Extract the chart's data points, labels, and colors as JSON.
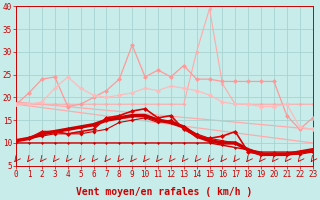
{
  "background_color": "#c8ecea",
  "grid_color": "#a8d4d0",
  "xlabel": "Vent moyen/en rafales ( km/h )",
  "xlabel_color": "#cc0000",
  "xlabel_fontsize": 7,
  "tick_color": "#cc0000",
  "xlim": [
    0,
    23
  ],
  "ylim": [
    5,
    40
  ],
  "yticks": [
    5,
    10,
    15,
    20,
    25,
    30,
    35,
    40
  ],
  "xticks": [
    0,
    1,
    2,
    3,
    4,
    5,
    6,
    7,
    8,
    9,
    10,
    11,
    12,
    13,
    14,
    15,
    16,
    17,
    18,
    19,
    20,
    21,
    22,
    23
  ],
  "lines": [
    {
      "x": [
        0,
        23
      ],
      "y": [
        19.0,
        13.0
      ],
      "color": "#ffaaaa",
      "lw": 0.9,
      "marker": null,
      "zorder": 1
    },
    {
      "x": [
        0,
        23
      ],
      "y": [
        18.5,
        10.0
      ],
      "color": "#ffaaaa",
      "lw": 0.9,
      "marker": null,
      "zorder": 1
    },
    {
      "x": [
        0,
        1,
        2,
        3,
        4,
        5,
        6,
        7,
        8,
        9,
        10,
        11,
        12,
        13,
        14,
        15,
        16,
        17,
        18,
        19,
        20,
        21,
        22,
        23
      ],
      "y": [
        18.5,
        18.5,
        18.5,
        18.5,
        18.5,
        18.5,
        18.5,
        18.5,
        18.5,
        18.5,
        18.5,
        18.5,
        18.5,
        18.5,
        30.0,
        39.5,
        23.0,
        18.5,
        18.5,
        18.5,
        18.5,
        18.5,
        18.5,
        18.5
      ],
      "color": "#ffaaaa",
      "lw": 0.8,
      "marker": "D",
      "markersize": 2.0,
      "zorder": 2
    },
    {
      "x": [
        0,
        1,
        2,
        3,
        4,
        5,
        6,
        7,
        8,
        9,
        10,
        11,
        12,
        13,
        14,
        15,
        16,
        17,
        18,
        19,
        20,
        21,
        22,
        23
      ],
      "y": [
        18.5,
        21.0,
        24.0,
        24.5,
        18.0,
        18.5,
        20.0,
        21.5,
        24.0,
        31.5,
        24.5,
        26.0,
        24.5,
        27.0,
        24.0,
        24.0,
        23.5,
        23.5,
        23.5,
        23.5,
        23.5,
        16.0,
        13.0,
        15.5
      ],
      "color": "#ff9999",
      "lw": 0.9,
      "marker": "D",
      "markersize": 2.5,
      "zorder": 3
    },
    {
      "x": [
        0,
        1,
        2,
        3,
        4,
        5,
        6,
        7,
        8,
        9,
        10,
        11,
        12,
        13,
        14,
        15,
        16,
        17,
        18,
        19,
        20,
        21,
        22,
        23
      ],
      "y": [
        18.5,
        18.5,
        19.0,
        22.0,
        24.5,
        22.0,
        20.5,
        20.0,
        20.5,
        21.0,
        22.0,
        21.5,
        22.5,
        22.0,
        21.5,
        20.5,
        19.0,
        18.5,
        18.5,
        18.0,
        18.0,
        18.5,
        13.5,
        13.0
      ],
      "color": "#ffbbbb",
      "lw": 0.9,
      "marker": "D",
      "markersize": 2.5,
      "zorder": 3
    },
    {
      "x": [
        0,
        1,
        2,
        3,
        4,
        5,
        6,
        7,
        8,
        9,
        10,
        11,
        12,
        13,
        14,
        15,
        16,
        17,
        18,
        19,
        20,
        21,
        22,
        23
      ],
      "y": [
        10.5,
        11.0,
        12.5,
        12.5,
        12.0,
        12.5,
        13.0,
        15.5,
        16.0,
        17.0,
        17.5,
        15.5,
        16.0,
        13.0,
        11.5,
        11.0,
        11.5,
        12.5,
        8.0,
        7.5,
        7.5,
        7.5,
        8.0,
        8.5
      ],
      "color": "#dd0000",
      "lw": 1.2,
      "marker": "D",
      "markersize": 2.5,
      "zorder": 5
    },
    {
      "x": [
        0,
        1,
        2,
        3,
        4,
        5,
        6,
        7,
        8,
        9,
        10,
        11,
        12,
        13,
        14,
        15,
        16,
        17,
        18,
        19,
        20,
        21,
        22,
        23
      ],
      "y": [
        10.5,
        11.0,
        12.0,
        12.5,
        13.0,
        13.5,
        14.0,
        15.0,
        15.5,
        16.0,
        16.0,
        15.0,
        14.5,
        13.5,
        11.5,
        10.5,
        10.0,
        10.0,
        8.5,
        7.5,
        7.5,
        7.5,
        8.0,
        8.5
      ],
      "color": "#cc0000",
      "lw": 2.5,
      "marker": "D",
      "markersize": 2.5,
      "zorder": 4
    },
    {
      "x": [
        0,
        1,
        2,
        3,
        4,
        5,
        6,
        7,
        8,
        9,
        10,
        11,
        12,
        13,
        14,
        15,
        16,
        17,
        18,
        19,
        20,
        21,
        22,
        23
      ],
      "y": [
        10.5,
        11.0,
        11.5,
        12.0,
        12.0,
        12.0,
        12.5,
        13.0,
        14.5,
        15.0,
        15.5,
        14.5,
        15.0,
        13.5,
        12.0,
        11.0,
        10.5,
        10.0,
        8.5,
        7.5,
        7.5,
        7.5,
        7.5,
        8.0
      ],
      "color": "#cc0000",
      "lw": 0.8,
      "marker": "D",
      "markersize": 2.0,
      "zorder": 4
    },
    {
      "x": [
        0,
        1,
        2,
        3,
        4,
        5,
        6,
        7,
        8,
        9,
        10,
        11,
        12,
        13,
        14,
        15,
        16,
        17,
        18,
        19,
        20,
        21,
        22,
        23
      ],
      "y": [
        10.0,
        10.0,
        10.0,
        10.0,
        10.0,
        10.0,
        10.0,
        10.0,
        10.0,
        10.0,
        10.0,
        10.0,
        10.0,
        10.0,
        10.0,
        10.0,
        9.5,
        9.0,
        8.5,
        8.0,
        8.0,
        8.0,
        8.0,
        8.0
      ],
      "color": "#cc0000",
      "lw": 1.0,
      "marker": "D",
      "markersize": 1.5,
      "zorder": 4
    }
  ]
}
